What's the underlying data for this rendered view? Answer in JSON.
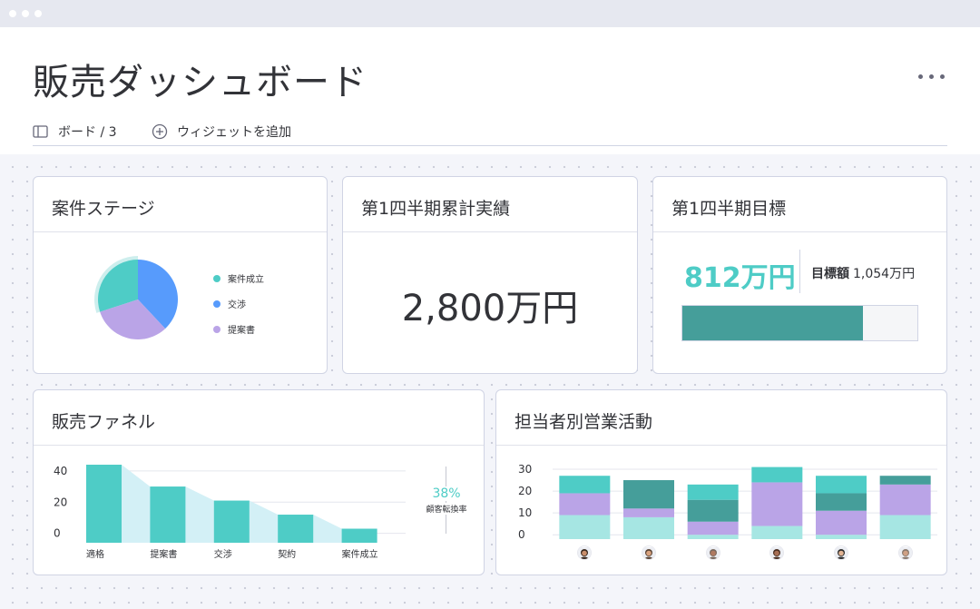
{
  "header": {
    "title": "販売ダッシュボード",
    "board_label": "ボード / 3",
    "add_widget_label": "ウィジェットを追加"
  },
  "colors": {
    "teal": "#4eccc6",
    "dark_teal": "#459e9a",
    "blue": "#579bfc",
    "purple": "#baa4e7",
    "light_teal": "#a6e6e3",
    "funnel_shade": "#d3f0f6"
  },
  "widgets": {
    "deal_stage": {
      "title": "案件ステージ",
      "legend": [
        {
          "label": "案件成立",
          "color": "#4eccc6"
        },
        {
          "label": "交渉",
          "color": "#579bfc"
        },
        {
          "label": "提案書",
          "color": "#baa4e7"
        }
      ]
    },
    "q1_actual": {
      "title": "第1四半期累計実績",
      "value": "2,800万円"
    },
    "q1_goal": {
      "title": "第1四半期目標",
      "value": "812万円",
      "target_label": "目標額",
      "target_value": "1,054万円",
      "progress_fraction": 0.77
    },
    "funnel": {
      "title": "販売ファネル",
      "conversion_pct": "38%",
      "conversion_label": "顧客転換率"
    },
    "activity": {
      "title": "担当者別営業活動",
      "avatar_icons": [
        "avatar-icon-1",
        "avatar-icon-2",
        "avatar-icon-3",
        "avatar-icon-4",
        "avatar-icon-5",
        "avatar-icon-6"
      ]
    }
  },
  "chart_data": [
    {
      "type": "pie",
      "categories": [
        "案件成立",
        "交渉",
        "提案書"
      ],
      "values": [
        30,
        38,
        32
      ],
      "colors": [
        "#4eccc6",
        "#579bfc",
        "#baa4e7"
      ],
      "highlighted": "案件成立"
    },
    {
      "type": "bar",
      "categories": [
        "適格",
        "提案書",
        "交渉",
        "契約",
        "案件成立"
      ],
      "values": [
        44,
        30,
        21,
        12,
        3
      ],
      "yticks": [
        0,
        20,
        40
      ],
      "ylim": [
        -6,
        44
      ],
      "color": "#4eccc6",
      "fill_between": true
    },
    {
      "type": "bar",
      "stacked": true,
      "categories": [
        "1",
        "2",
        "3",
        "4",
        "5",
        "6"
      ],
      "yticks": [
        0,
        10,
        20,
        30
      ],
      "ylim": [
        -2,
        30
      ],
      "series": [
        {
          "values": [
            11,
            10,
            2,
            6,
            2,
            11
          ],
          "color": "#a6e6e3"
        },
        {
          "values": [
            10,
            4,
            6,
            20,
            11,
            14
          ],
          "color": "#baa4e7"
        },
        {
          "values": [
            0,
            13,
            10,
            0,
            8,
            0
          ],
          "color": "#459e9a"
        },
        {
          "values": [
            8,
            0,
            7,
            7,
            8,
            0
          ],
          "color": "#4eccc6"
        },
        {
          "values": [
            0,
            0,
            0,
            0,
            0,
            4
          ],
          "color": "#459e9a"
        }
      ]
    }
  ]
}
